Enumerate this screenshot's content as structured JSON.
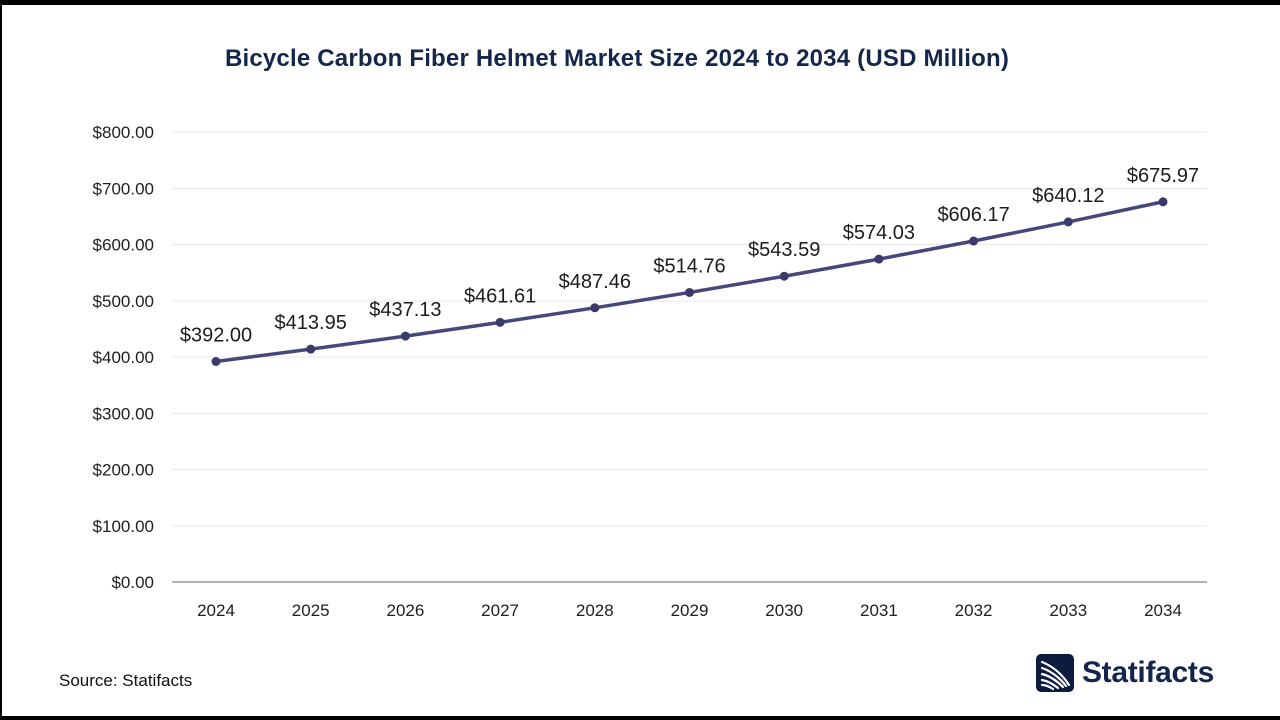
{
  "page": {
    "source_label": "Source: Statifacts",
    "brand_name": "Statifacts"
  },
  "chart_data": {
    "type": "line",
    "title": "Bicycle Carbon Fiber Helmet Market Size 2024 to 2034 (USD Million)",
    "categories": [
      "2024",
      "2025",
      "2026",
      "2027",
      "2028",
      "2029",
      "2030",
      "2031",
      "2032",
      "2033",
      "2034"
    ],
    "series": [
      {
        "name": "Market Size (USD Million)",
        "values": [
          392.0,
          413.95,
          437.13,
          461.61,
          487.46,
          514.76,
          543.59,
          574.03,
          606.17,
          640.12,
          675.97
        ]
      }
    ],
    "point_labels": [
      "$392.00",
      "$413.95",
      "$437.13",
      "$461.61",
      "$487.46",
      "$514.76",
      "$543.59",
      "$574.03",
      "$606.17",
      "$640.12",
      "$675.97"
    ],
    "xlabel": "",
    "ylabel": "",
    "ylim": [
      0,
      800
    ],
    "y_tick_step": 100,
    "y_tick_labels": [
      "$0.00",
      "$100.00",
      "$200.00",
      "$300.00",
      "$400.00",
      "$500.00",
      "$600.00",
      "$700.00",
      "$800.00"
    ],
    "grid": true,
    "legend": "none",
    "colors": {
      "line": "#46477e",
      "point": "#3a3b6b",
      "grid": "#e8e8e8",
      "axis": "#b3b3b3",
      "tick_label": "#1f1f1f",
      "data_label": "#1c1c1c",
      "title": "#15264d",
      "brand_navy": "#0d1b3e"
    }
  }
}
